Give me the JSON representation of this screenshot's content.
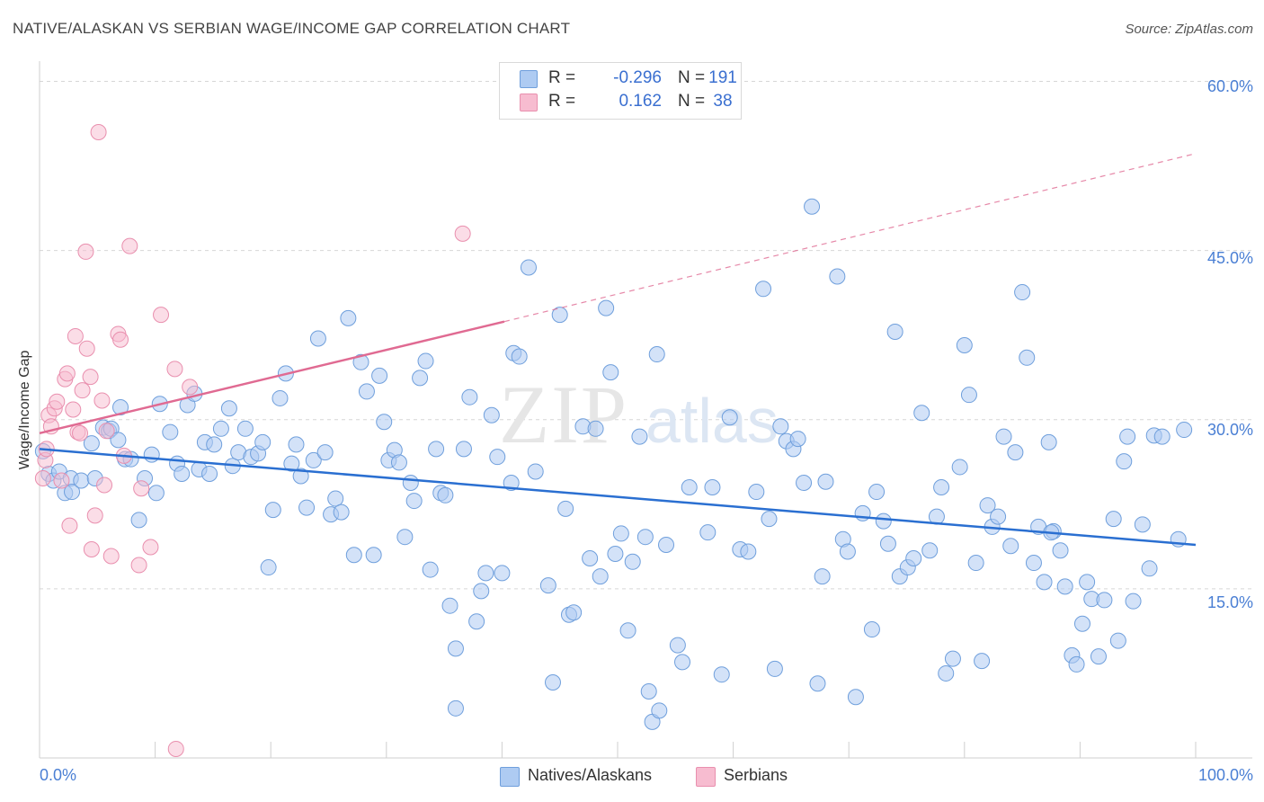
{
  "title": "NATIVE/ALASKAN VS SERBIAN WAGE/INCOME GAP CORRELATION CHART",
  "source": "Source: ZipAtlas.com",
  "watermark": {
    "zip": "ZIP",
    "atlas": "atlas"
  },
  "colors": {
    "blue_fill": "#aecbf2",
    "blue_stroke": "#6f9fdc",
    "blue_line": "#2a6fd1",
    "pink_fill": "#f7bcd0",
    "pink_stroke": "#e98fae",
    "pink_line": "#e06a92",
    "grid": "#d6d6d6",
    "tick_text": "#4a7fd4"
  },
  "legend": {
    "rows": [
      {
        "series": "natives",
        "r_label": "R =",
        "r_value": "-0.296",
        "n_label": "N =",
        "n_value": "191"
      },
      {
        "series": "serbians",
        "r_label": "R =",
        "r_value": "0.162",
        "n_label": "N =",
        "n_value": "38"
      }
    ]
  },
  "bottom_legend": [
    {
      "series": "natives",
      "label": "Natives/Alaskans"
    },
    {
      "series": "serbians",
      "label": "Serbians"
    }
  ],
  "chart_data": {
    "type": "scatter",
    "xlabel": "",
    "ylabel": "Wage/Income Gap",
    "xlim": [
      0,
      100
    ],
    "ylim": [
      0,
      61
    ],
    "x_tick_labels": [
      {
        "value": 0,
        "label": "0.0%"
      },
      {
        "value": 100,
        "label": "100.0%"
      }
    ],
    "y_tick_labels": [
      {
        "value": 15,
        "label": "15.0%"
      },
      {
        "value": 30,
        "label": "30.0%"
      },
      {
        "value": 45,
        "label": "45.0%"
      },
      {
        "value": 60,
        "label": "60.0%"
      }
    ],
    "grid": true,
    "series": [
      {
        "name": "Natives/Alaskans",
        "key": "natives",
        "trend": {
          "x": [
            0,
            100
          ],
          "y": [
            27.4,
            18.9
          ],
          "style": "solid"
        },
        "points": [
          [
            0.3,
            27.2
          ],
          [
            0.8,
            25.2
          ],
          [
            1.2,
            24.6
          ],
          [
            1.7,
            25.4
          ],
          [
            2.2,
            23.5
          ],
          [
            2.7,
            24.8
          ],
          [
            2.8,
            23.6
          ],
          [
            3.6,
            24.6
          ],
          [
            4.5,
            27.9
          ],
          [
            4.8,
            24.8
          ],
          [
            5.5,
            29.3
          ],
          [
            6.0,
            29.0
          ],
          [
            6.2,
            29.2
          ],
          [
            6.8,
            28.2
          ],
          [
            7.0,
            31.1
          ],
          [
            7.4,
            26.5
          ],
          [
            7.9,
            26.5
          ],
          [
            8.6,
            21.1
          ],
          [
            9.1,
            24.8
          ],
          [
            9.7,
            26.9
          ],
          [
            10.1,
            23.5
          ],
          [
            10.4,
            31.4
          ],
          [
            11.3,
            28.9
          ],
          [
            11.9,
            26.1
          ],
          [
            12.3,
            25.2
          ],
          [
            12.8,
            31.3
          ],
          [
            13.4,
            32.3
          ],
          [
            13.8,
            25.6
          ],
          [
            14.3,
            28.0
          ],
          [
            14.7,
            25.2
          ],
          [
            15.1,
            27.8
          ],
          [
            15.7,
            29.2
          ],
          [
            16.4,
            31.0
          ],
          [
            16.7,
            25.9
          ],
          [
            17.2,
            27.1
          ],
          [
            17.8,
            29.2
          ],
          [
            18.3,
            26.7
          ],
          [
            18.9,
            27.0
          ],
          [
            19.3,
            28.0
          ],
          [
            19.8,
            16.9
          ],
          [
            20.2,
            22.0
          ],
          [
            20.8,
            31.9
          ],
          [
            21.3,
            34.1
          ],
          [
            21.8,
            26.1
          ],
          [
            22.2,
            27.8
          ],
          [
            22.6,
            25.0
          ],
          [
            23.1,
            22.2
          ],
          [
            23.7,
            26.4
          ],
          [
            24.1,
            37.2
          ],
          [
            24.7,
            27.1
          ],
          [
            25.2,
            21.6
          ],
          [
            25.6,
            23.0
          ],
          [
            26.1,
            21.8
          ],
          [
            26.7,
            39.0
          ],
          [
            27.2,
            18.0
          ],
          [
            27.8,
            35.1
          ],
          [
            28.3,
            32.5
          ],
          [
            28.9,
            18.0
          ],
          [
            29.4,
            33.9
          ],
          [
            29.8,
            29.8
          ],
          [
            30.2,
            26.4
          ],
          [
            30.7,
            27.3
          ],
          [
            31.1,
            26.2
          ],
          [
            31.6,
            19.6
          ],
          [
            32.1,
            24.4
          ],
          [
            32.4,
            22.8
          ],
          [
            32.9,
            33.7
          ],
          [
            33.4,
            35.2
          ],
          [
            33.8,
            16.7
          ],
          [
            34.3,
            27.4
          ],
          [
            34.7,
            23.5
          ],
          [
            35.1,
            23.3
          ],
          [
            35.5,
            13.5
          ],
          [
            36.0,
            9.7
          ],
          [
            36.0,
            4.4
          ],
          [
            36.7,
            27.4
          ],
          [
            37.2,
            32.0
          ],
          [
            37.8,
            12.1
          ],
          [
            38.2,
            14.8
          ],
          [
            38.6,
            16.4
          ],
          [
            39.1,
            30.4
          ],
          [
            39.6,
            26.7
          ],
          [
            40.0,
            16.4
          ],
          [
            40.8,
            24.4
          ],
          [
            41.0,
            35.9
          ],
          [
            41.5,
            35.6
          ],
          [
            42.3,
            43.5
          ],
          [
            42.9,
            25.4
          ],
          [
            44.0,
            15.3
          ],
          [
            44.4,
            6.7
          ],
          [
            45.0,
            39.3
          ],
          [
            45.5,
            22.1
          ],
          [
            45.8,
            12.7
          ],
          [
            46.2,
            12.9
          ],
          [
            47.0,
            29.4
          ],
          [
            47.6,
            17.7
          ],
          [
            48.1,
            29.2
          ],
          [
            48.5,
            16.1
          ],
          [
            49.0,
            39.9
          ],
          [
            49.4,
            34.2
          ],
          [
            49.8,
            18.1
          ],
          [
            50.3,
            19.9
          ],
          [
            50.9,
            11.3
          ],
          [
            51.3,
            17.4
          ],
          [
            51.9,
            28.5
          ],
          [
            52.4,
            19.6
          ],
          [
            52.7,
            5.9
          ],
          [
            53.4,
            35.8
          ],
          [
            53.0,
            3.2
          ],
          [
            53.6,
            4.2
          ],
          [
            54.2,
            18.9
          ],
          [
            55.2,
            10.0
          ],
          [
            55.6,
            8.5
          ],
          [
            56.2,
            24.0
          ],
          [
            57.8,
            20.0
          ],
          [
            58.2,
            24.0
          ],
          [
            59.0,
            7.4
          ],
          [
            59.7,
            30.2
          ],
          [
            60.6,
            18.5
          ],
          [
            61.3,
            18.3
          ],
          [
            62.0,
            23.6
          ],
          [
            62.6,
            41.6
          ],
          [
            63.1,
            21.2
          ],
          [
            63.6,
            7.9
          ],
          [
            64.1,
            29.4
          ],
          [
            64.6,
            28.1
          ],
          [
            65.2,
            27.4
          ],
          [
            65.6,
            28.3
          ],
          [
            66.1,
            24.4
          ],
          [
            66.8,
            48.9
          ],
          [
            67.3,
            6.6
          ],
          [
            67.7,
            16.1
          ],
          [
            68.0,
            24.5
          ],
          [
            69.0,
            42.7
          ],
          [
            69.5,
            19.4
          ],
          [
            69.9,
            18.3
          ],
          [
            70.6,
            5.4
          ],
          [
            71.2,
            21.7
          ],
          [
            72.0,
            11.4
          ],
          [
            72.4,
            23.6
          ],
          [
            73.0,
            21.0
          ],
          [
            73.4,
            19.0
          ],
          [
            74.0,
            37.8
          ],
          [
            74.4,
            16.1
          ],
          [
            75.1,
            16.9
          ],
          [
            75.6,
            17.7
          ],
          [
            76.3,
            30.6
          ],
          [
            77.0,
            18.4
          ],
          [
            77.6,
            21.4
          ],
          [
            78.0,
            24.0
          ],
          [
            78.4,
            7.5
          ],
          [
            79.0,
            8.8
          ],
          [
            79.6,
            25.8
          ],
          [
            80.0,
            36.6
          ],
          [
            80.4,
            32.2
          ],
          [
            81.0,
            17.3
          ],
          [
            81.5,
            8.6
          ],
          [
            82.0,
            22.4
          ],
          [
            82.4,
            20.5
          ],
          [
            82.9,
            21.4
          ],
          [
            83.4,
            28.5
          ],
          [
            84.0,
            18.8
          ],
          [
            84.4,
            27.1
          ],
          [
            85.0,
            41.3
          ],
          [
            85.4,
            35.5
          ],
          [
            86.0,
            17.3
          ],
          [
            86.4,
            20.5
          ],
          [
            86.9,
            15.6
          ],
          [
            87.3,
            28.0
          ],
          [
            87.7,
            20.1
          ],
          [
            88.3,
            18.4
          ],
          [
            88.7,
            15.2
          ],
          [
            89.3,
            9.1
          ],
          [
            89.7,
            8.3
          ],
          [
            90.2,
            11.9
          ],
          [
            90.6,
            15.6
          ],
          [
            91.0,
            14.1
          ],
          [
            91.6,
            9.0
          ],
          [
            92.1,
            14.0
          ],
          [
            92.9,
            21.2
          ],
          [
            93.3,
            10.4
          ],
          [
            93.8,
            26.3
          ],
          [
            94.1,
            28.5
          ],
          [
            94.6,
            13.9
          ],
          [
            95.4,
            20.7
          ],
          [
            96.0,
            16.8
          ],
          [
            96.4,
            28.6
          ],
          [
            97.1,
            28.5
          ],
          [
            98.5,
            19.4
          ],
          [
            99.0,
            29.1
          ],
          [
            87.5,
            20.0
          ]
        ]
      },
      {
        "name": "Serbians",
        "key": "serbians",
        "trend": {
          "x": [
            0,
            40.2,
            100
          ],
          "y": [
            28.8,
            38.7,
            53.6
          ],
          "style": "solid-then-dashed"
        },
        "points": [
          [
            0.3,
            24.8
          ],
          [
            0.5,
            26.4
          ],
          [
            0.6,
            27.4
          ],
          [
            0.8,
            30.4
          ],
          [
            1.0,
            29.4
          ],
          [
            1.3,
            31.0
          ],
          [
            1.5,
            31.6
          ],
          [
            1.9,
            24.6
          ],
          [
            2.2,
            33.6
          ],
          [
            2.4,
            34.1
          ],
          [
            2.6,
            20.6
          ],
          [
            2.9,
            30.9
          ],
          [
            3.1,
            37.4
          ],
          [
            3.3,
            28.9
          ],
          [
            3.5,
            28.8
          ],
          [
            3.7,
            32.6
          ],
          [
            4.0,
            44.9
          ],
          [
            4.1,
            36.3
          ],
          [
            4.4,
            33.8
          ],
          [
            4.5,
            18.5
          ],
          [
            4.8,
            21.5
          ],
          [
            5.1,
            55.5
          ],
          [
            5.4,
            31.7
          ],
          [
            5.6,
            24.2
          ],
          [
            5.8,
            29.0
          ],
          [
            6.2,
            17.9
          ],
          [
            6.8,
            37.6
          ],
          [
            7.0,
            37.1
          ],
          [
            7.3,
            26.8
          ],
          [
            7.8,
            45.4
          ],
          [
            8.6,
            17.1
          ],
          [
            8.8,
            23.9
          ],
          [
            9.6,
            18.7
          ],
          [
            10.5,
            39.3
          ],
          [
            11.7,
            34.5
          ],
          [
            11.8,
            0.8
          ],
          [
            13.0,
            32.9
          ],
          [
            36.6,
            46.5
          ]
        ]
      }
    ]
  }
}
